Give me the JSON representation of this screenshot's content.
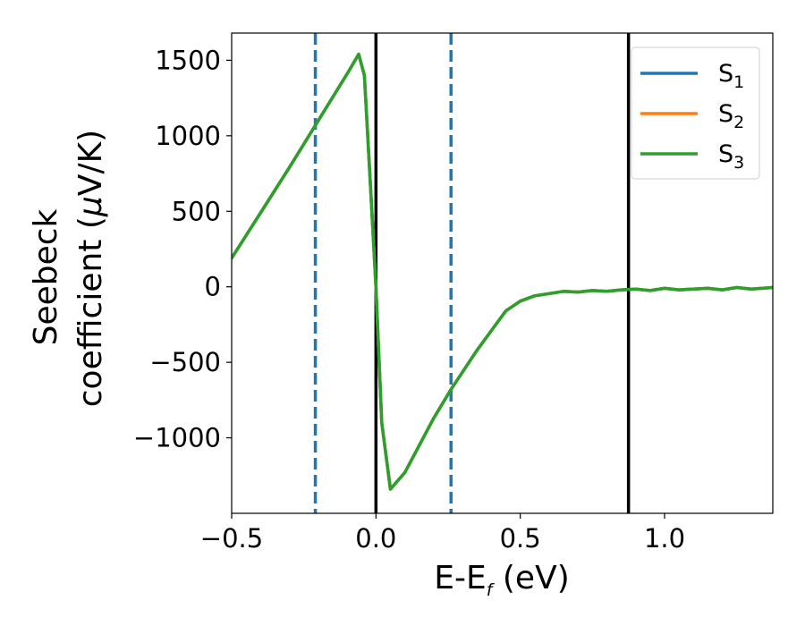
{
  "chart_data": {
    "type": "line",
    "xlabel": "E-E",
    "xlabel_sub": "f",
    "xlabel_unit": " (eV)",
    "ylabel_line1": "Seebeck",
    "ylabel_line2": "coefficient  (",
    "ylabel_mu": "μ",
    "ylabel_unit": "V/K)",
    "xlim": [
      -0.5,
      1.375
    ],
    "ylim": [
      -1500,
      1680
    ],
    "xticks": [
      -0.5,
      0.0,
      0.5,
      1.0
    ],
    "xtick_labels": [
      "−0.5",
      "0.0",
      "0.5",
      "1.0"
    ],
    "yticks": [
      -1000,
      -500,
      0,
      500,
      1000,
      1500
    ],
    "ytick_labels": [
      "−1000",
      "−500",
      "0",
      "500",
      "1000",
      "1500"
    ],
    "grid": false,
    "legend_placement": "top-right",
    "series": [
      {
        "name": "S",
        "name_sub": "1",
        "color": "#1f77b4",
        "x": [
          -0.5,
          -0.4,
          -0.3,
          -0.2,
          -0.1,
          -0.06,
          -0.04,
          -0.02,
          0.0,
          0.02,
          0.05,
          0.1,
          0.2,
          0.26,
          0.35,
          0.45,
          0.5,
          0.55,
          0.6,
          0.65,
          0.7,
          0.75,
          0.8,
          0.85,
          0.9,
          0.95,
          1.0,
          1.05,
          1.1,
          1.15,
          1.2,
          1.25,
          1.3,
          1.375
        ],
        "y": [
          190,
          490,
          790,
          1100,
          1410,
          1540,
          1400,
          700,
          0,
          -900,
          -1340,
          -1230,
          -870,
          -680,
          -420,
          -160,
          -95,
          -60,
          -45,
          -30,
          -35,
          -25,
          -30,
          -20,
          -15,
          -25,
          -10,
          -20,
          -15,
          -10,
          -20,
          -5,
          -15,
          -5
        ]
      },
      {
        "name": "S",
        "name_sub": "2",
        "color": "#ff7f0e",
        "x": [
          -0.5,
          -0.4,
          -0.3,
          -0.2,
          -0.1,
          -0.06,
          -0.04,
          -0.02,
          0.0,
          0.02,
          0.05,
          0.1,
          0.2,
          0.26,
          0.35,
          0.45,
          0.5,
          0.55,
          0.6,
          0.65,
          0.7,
          0.75,
          0.8,
          0.85,
          0.9,
          0.95,
          1.0,
          1.05,
          1.1,
          1.15,
          1.2,
          1.25,
          1.3,
          1.375
        ],
        "y": [
          190,
          490,
          790,
          1100,
          1410,
          1540,
          1400,
          700,
          0,
          -900,
          -1340,
          -1230,
          -870,
          -680,
          -420,
          -160,
          -95,
          -60,
          -45,
          -30,
          -35,
          -25,
          -30,
          -20,
          -15,
          -25,
          -10,
          -20,
          -15,
          -10,
          -20,
          -5,
          -15,
          -5
        ]
      },
      {
        "name": "S",
        "name_sub": "3",
        "color": "#2ca02c",
        "x": [
          -0.5,
          -0.4,
          -0.3,
          -0.2,
          -0.1,
          -0.06,
          -0.04,
          -0.02,
          0.0,
          0.02,
          0.05,
          0.1,
          0.2,
          0.26,
          0.35,
          0.45,
          0.5,
          0.55,
          0.6,
          0.65,
          0.7,
          0.75,
          0.8,
          0.85,
          0.9,
          0.95,
          1.0,
          1.05,
          1.1,
          1.15,
          1.2,
          1.25,
          1.3,
          1.375
        ],
        "y": [
          190,
          490,
          790,
          1100,
          1410,
          1540,
          1400,
          700,
          0,
          -900,
          -1340,
          -1230,
          -870,
          -680,
          -420,
          -160,
          -95,
          -60,
          -45,
          -30,
          -35,
          -25,
          -30,
          -20,
          -15,
          -25,
          -10,
          -20,
          -15,
          -10,
          -20,
          -5,
          -15,
          -5
        ]
      }
    ],
    "vlines": [
      {
        "x": -0.21,
        "color": "#1f77b4",
        "style": "dashed"
      },
      {
        "x": 0.0,
        "color": "#000000",
        "style": "solid"
      },
      {
        "x": 0.26,
        "color": "#1f77b4",
        "style": "dashed"
      },
      {
        "x": 0.875,
        "color": "#000000",
        "style": "solid"
      }
    ]
  }
}
